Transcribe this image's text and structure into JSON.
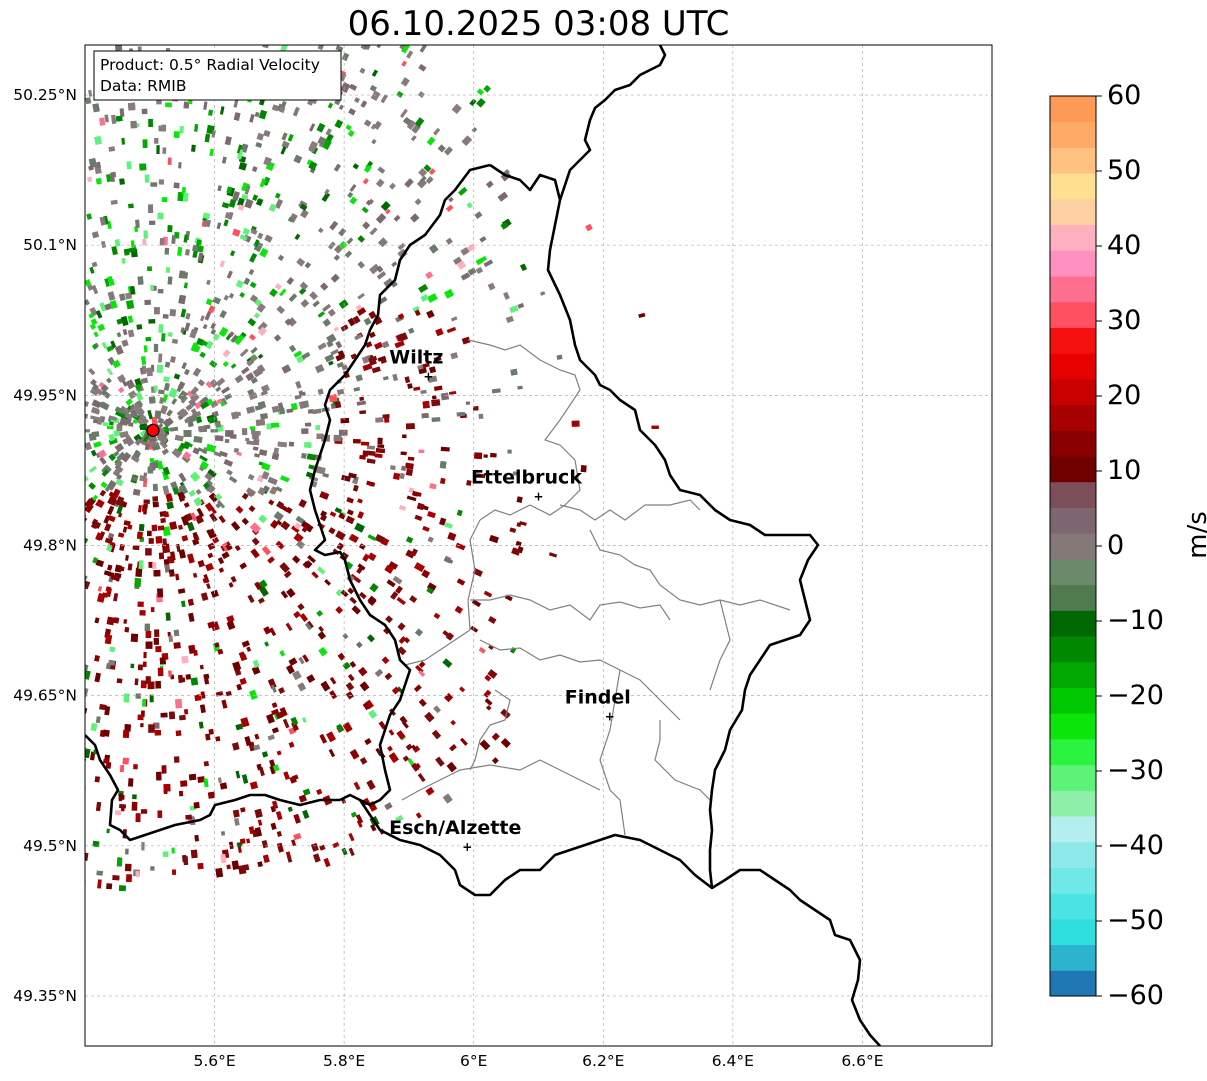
{
  "title": "06.10.2025 03:08 UTC",
  "info_box": {
    "product": "Product: 0.5° Radial Velocity",
    "data": "Data: RMIB"
  },
  "axes": {
    "lat_ticks": [
      "49.35°N",
      "49.5°N",
      "49.65°N",
      "49.8°N",
      "49.95°N",
      "50.1°N",
      "50.25°N"
    ],
    "lon_ticks": [
      "5.6°E",
      "5.8°E",
      "6°E",
      "6.2°E",
      "6.4°E",
      "6.6°E"
    ],
    "lat_values": [
      49.35,
      49.5,
      49.65,
      49.8,
      49.95,
      50.1,
      50.25
    ],
    "lon_values": [
      5.6,
      5.8,
      6.0,
      6.2,
      6.4,
      6.6
    ],
    "lat_range": [
      49.3,
      50.3
    ],
    "lon_range": [
      5.4,
      6.8
    ]
  },
  "cities": [
    {
      "name": "Wiltz",
      "lon": 5.93,
      "lat": 49.97
    },
    {
      "name": "Ettelbruck",
      "lon": 6.1,
      "lat": 49.85
    },
    {
      "name": "Findel",
      "lon": 6.21,
      "lat": 49.63
    },
    {
      "name": "Esch/Alzette",
      "lon": 5.99,
      "lat": 49.5
    }
  ],
  "radar_site": {
    "lon": 5.505,
    "lat": 49.915
  },
  "colorbar": {
    "label": "m/s",
    "ticks": [
      "60",
      "50",
      "40",
      "30",
      "20",
      "10",
      "0",
      "−10",
      "−20",
      "−30",
      "−40",
      "−50",
      "−60"
    ],
    "range": [
      -60,
      60
    ],
    "colors": [
      "#1f77b4",
      "#2bb3d0",
      "#2fdede",
      "#4be3e3",
      "#70e8e8",
      "#8eeaea",
      "#b5eeee",
      "#8ef0a8",
      "#5ef278",
      "#2af440",
      "#0ae60a",
      "#00c800",
      "#00a800",
      "#008800",
      "#006800",
      "#4f7b4f",
      "#6b8a6b",
      "#857878",
      "#7d6670",
      "#7d4e58",
      "#6e0000",
      "#8a0000",
      "#a80000",
      "#c80000",
      "#e60000",
      "#f51010",
      "#ff5060",
      "#ff7090",
      "#ff90c0",
      "#ffb0c0",
      "#ffd0a0",
      "#ffe090",
      "#ffc080",
      "#ffaa66",
      "#ff9955"
    ]
  }
}
